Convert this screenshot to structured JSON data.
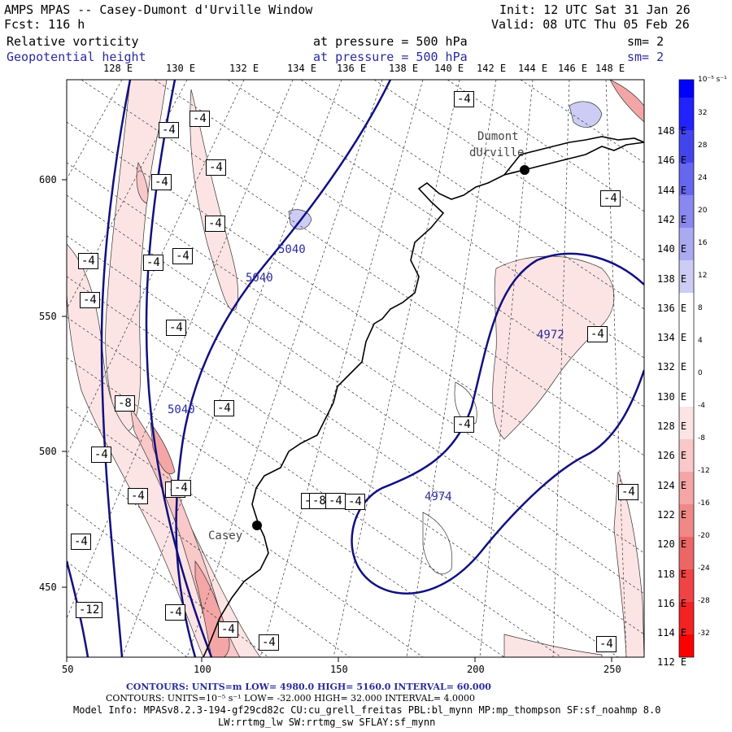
{
  "header": {
    "title": "AMPS MPAS -- Casey-Dumont d'Urville Window",
    "init": "Init: 12 UTC Sat 31 Jan 26",
    "fcst": "Fcst:  116 h",
    "valid": "Valid: 08 UTC Thu 05 Feb 26",
    "field1": "Relative vorticity",
    "field1_level": "at pressure =  500 hPa",
    "field1_sm": "sm= 2",
    "field2": "Geopotential height",
    "field2_level": "at pressure =  500 hPa",
    "field2_sm": "sm= 2"
  },
  "axes": {
    "lon_labels": [
      "128 E",
      "130 E",
      "132 E",
      "134 E",
      "136 E",
      "138 E",
      "140 E",
      "142 E",
      "144 E",
      "146 E",
      "148 E"
    ],
    "lat_labels": [
      "148 E",
      "146 E",
      "144 E",
      "142 E",
      "140 E",
      "138 E",
      "136 E",
      "134 E",
      "132 E",
      "130 E",
      "128 E",
      "126 E",
      "124 E",
      "122 E",
      "120 E",
      "118 E",
      "116 E",
      "114 E",
      "112 E"
    ],
    "x_ticks": [
      "50",
      "100",
      "150",
      "200",
      "250"
    ],
    "y_ticks": [
      "600",
      "550",
      "500",
      "450"
    ]
  },
  "colorbar": {
    "unit": "10⁻⁵ s⁻¹",
    "labels": [
      "32",
      "28",
      "24",
      "20",
      "16",
      "12",
      "8",
      "4",
      "0",
      "-4",
      "-8",
      "-12",
      "-16",
      "-20",
      "-24",
      "-28",
      "-32"
    ],
    "colors": [
      "#0000ff",
      "#2222ff",
      "#4444ee",
      "#6666ee",
      "#8888ee",
      "#aaaaf0",
      "#ccccf5",
      "#ffffff",
      "#ffffff",
      "#fde4e4",
      "#f9c8c8",
      "#f4a6a6",
      "#f08888",
      "#ec6666",
      "#f04444",
      "#f42222",
      "#ff0000"
    ]
  },
  "map": {
    "stations": [
      "Dumont",
      "dUrville",
      "Casey"
    ],
    "height_labels": [
      "5040",
      "5040",
      "5040",
      "4972",
      "4974"
    ],
    "vort_labels": [
      "-4",
      "-4",
      "-4",
      "-4",
      "-4",
      "-4",
      "-4",
      "-4",
      "-4",
      "-4",
      "-4",
      "-4",
      "-4",
      "-4",
      "-8",
      "-4",
      "-4",
      "-4",
      "-4",
      "-4",
      "-4",
      "-12",
      "-4",
      "-4",
      "-4",
      "-4",
      "-4",
      "-4",
      "-4",
      "-8",
      "-4"
    ]
  },
  "footer": {
    "contours1": "CONTOURS:  UNITS=m  LOW=  4980.0      HIGH=  5160.0      INTERVAL=  60.000",
    "contours2": "CONTOURS:  UNITS=10⁻⁵ s⁻¹  LOW= -32.000      HIGH=  32.000     INTERVAL=  4.0000",
    "model_info": "Model Info: MPASv8.2.3-194-gf29cd82c CU:cu_grell_freitas PBL:bl_mynn MP:mp_thompson SF:sf_noahmp 8.0",
    "model_info2": "LW:rrtmg_lw SW:rrtmg_sw SFLAY:sf_mynn"
  }
}
